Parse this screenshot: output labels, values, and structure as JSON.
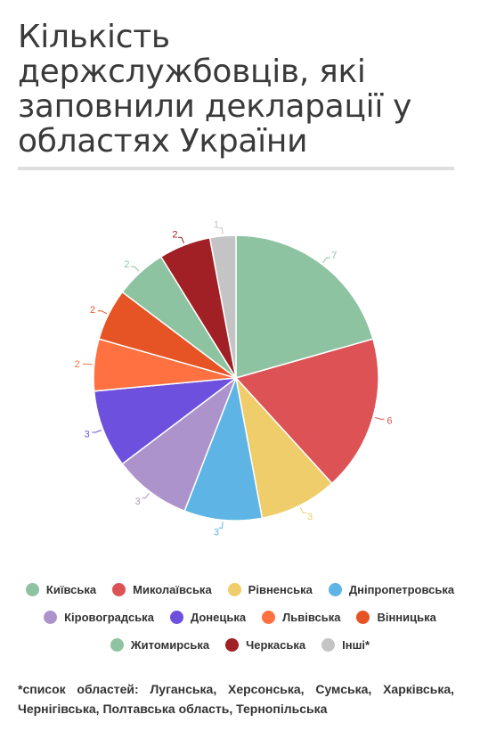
{
  "title": "Кількість держслужбовців, які заповнили декларації у областях України",
  "footnote": "*список областей: Луганська, Херсонська, Сумська, Харківська, Чернігівська, Полтавська область, Тернопільська",
  "chart_data": {
    "type": "pie",
    "title": "Кількість держслужбовців, які заповнили декларації у областях України",
    "categories": [
      "Київська",
      "Миколаївська",
      "Рівненська",
      "Дніпропетровська",
      "Кіровоградська",
      "Донецька",
      "Львівська",
      "Вінницька",
      "Житомирська",
      "Черкаська",
      "Інші*"
    ],
    "values": [
      7,
      6,
      3,
      3,
      3,
      3,
      2,
      2,
      2,
      2,
      1
    ],
    "colors": [
      "#8ec3a1",
      "#dc5255",
      "#efcd6a",
      "#5eb5e5",
      "#ac93cc",
      "#6d50dd",
      "#ff7140",
      "#e65324",
      "#8ec3a1",
      "#a02025",
      "#c4c4c4"
    ],
    "legend_placement": "bottom"
  }
}
